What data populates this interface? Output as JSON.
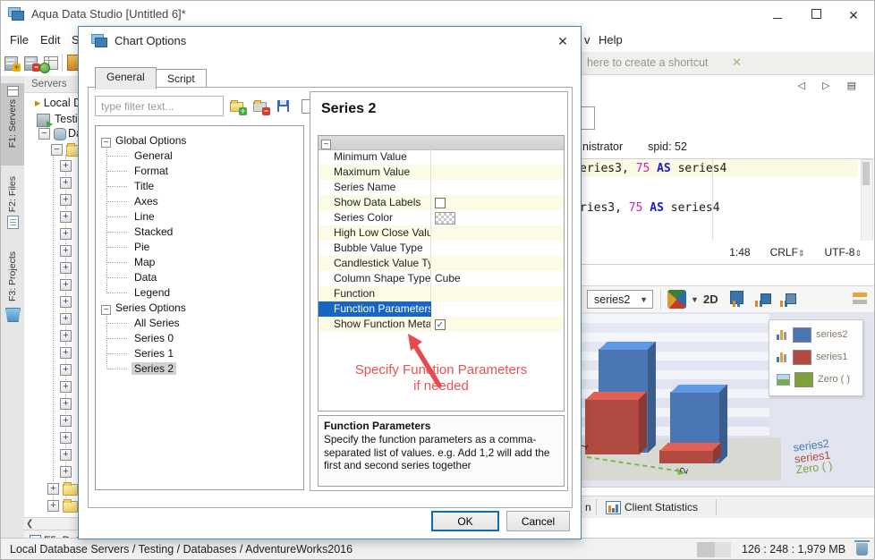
{
  "window": {
    "title": "Aqua Data Studio [Untitled 6]*"
  },
  "menu": {
    "items": [
      "File",
      "Edit",
      "S"
    ],
    "right_items": [
      "v",
      "Help"
    ]
  },
  "shortcut_bar": {
    "text": "here to create a shortcut",
    "close_glyph": "✕"
  },
  "left_tabs": [
    {
      "label": "F1: Servers",
      "selected": true
    },
    {
      "label": "F2: Files",
      "selected": false
    },
    {
      "label": "F3: Projects",
      "selected": false
    }
  ],
  "servers_panel": {
    "header": "Servers",
    "items": [
      "Local Datab",
      "Testing",
      "Dat"
    ],
    "expand_nodes": 19,
    "folder_nodes": 2,
    "details_tab": "F5: Det"
  },
  "editor": {
    "session_suffix": "nistrator",
    "spid": "spid: 52",
    "lines": [
      {
        "highlight": true,
        "tokens": [
          {
            "t": "eries3, ",
            "c": "p"
          },
          {
            "t": "75",
            "c": "n"
          },
          {
            "t": " ",
            "c": "p"
          },
          {
            "t": "AS",
            "c": "k"
          },
          {
            "t": " series4",
            "c": "p"
          }
        ]
      },
      {
        "highlight": false,
        "tokens": [
          {
            "t": "ries3, ",
            "c": "p"
          },
          {
            "t": "75",
            "c": "n"
          },
          {
            "t": " ",
            "c": "p"
          },
          {
            "t": "AS",
            "c": "k"
          },
          {
            "t": " series4",
            "c": "p"
          }
        ]
      }
    ],
    "status": {
      "cursor": "1:48",
      "eol": "CRLF",
      "encoding": "UTF-8",
      "updown_glyph": "⇕"
    }
  },
  "chart_toolbar": {
    "series_selector": "series2",
    "dropdown_glyph": "▼",
    "mode_label": "2D"
  },
  "chart_preview": {
    "colors": {
      "series2": "#4a77b4",
      "series1": "#b14b42",
      "zero": "#7fa13c"
    },
    "legend": [
      {
        "label": "series2",
        "color": "#4a77b4",
        "icon": "bar-chart-icon"
      },
      {
        "label": "series1",
        "color": "#b14b42",
        "icon": "bar-chart-icon"
      },
      {
        "label": "Zero ( )",
        "color": "#7fa13c",
        "icon": "area-chart-icon"
      }
    ],
    "x_labels": [
      "1",
      "2"
    ],
    "axis_series_labels": [
      {
        "text": "series2",
        "color": "#4a77b4"
      },
      {
        "text": "series1",
        "color": "#b14b42"
      },
      {
        "text": "Zero ( )",
        "color": "#7fa13c"
      }
    ]
  },
  "bottom_tabs": {
    "partial": "n",
    "client_stats": "Client Statistics"
  },
  "status_bar": {
    "path": "Local Database Servers / Testing / Databases / AdventureWorks2016",
    "memory": "126 : 248 : 1,979 MB"
  },
  "dialog": {
    "title": "Chart Options",
    "close_glyph": "✕",
    "tabs": [
      {
        "label": "General",
        "selected": true
      },
      {
        "label": "Script",
        "selected": false
      }
    ],
    "filter_placeholder": "type filter text...",
    "tree": [
      {
        "label": "Global Options",
        "children": [
          "General",
          "Format",
          "Title",
          "Axes",
          "Line",
          "Stacked",
          "Pie",
          "Map",
          "Data",
          "Legend"
        ]
      },
      {
        "label": "Series Options",
        "children": [
          "All Series",
          "Series 0",
          "Series 1",
          "Series 2"
        ],
        "selected_child": "Series 2"
      }
    ],
    "panel_title": "Series 2",
    "properties": [
      {
        "name": "Minimum Value",
        "value": "",
        "type": "text"
      },
      {
        "name": "Maximum Value",
        "value": "",
        "type": "text"
      },
      {
        "name": "Series Name",
        "value": "",
        "type": "text"
      },
      {
        "name": "Show Data Labels",
        "checked": false,
        "type": "checkbox"
      },
      {
        "name": "Series Color",
        "value": "transparent",
        "type": "swatch"
      },
      {
        "name": "High Low Close Valu…",
        "value": "",
        "type": "text"
      },
      {
        "name": "Bubble Value Type",
        "value": "",
        "type": "text"
      },
      {
        "name": "Candlestick Value Type",
        "value": "",
        "type": "text"
      },
      {
        "name": "Column Shape Type",
        "value": "Cube",
        "type": "text"
      },
      {
        "name": "Function",
        "value": "",
        "type": "text"
      },
      {
        "name": "Function Parameters",
        "value": "",
        "type": "text",
        "selected": true
      },
      {
        "name": "Show Function Meta…",
        "checked": true,
        "type": "checkbox"
      }
    ],
    "annotation": {
      "line1": "Specify Function Parameters",
      "line2": "if needed",
      "color": "#f0504f"
    },
    "help": {
      "title": "Function Parameters",
      "body": "Specify the function parameters as a comma-separated list of values.  e.g. Add 1,2 will add the first and second series together"
    },
    "ok_label": "OK",
    "cancel_label": "Cancel"
  }
}
